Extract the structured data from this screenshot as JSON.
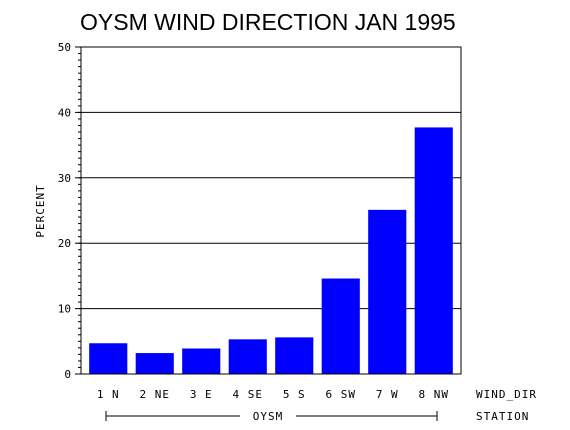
{
  "chart_data": {
    "type": "bar",
    "title": "OYSM WIND DIRECTION JAN 1995",
    "ylabel": "PERCENT",
    "xlabel": "WIND_DIR",
    "group_label": "OYSM",
    "group_axis_label": "STATION",
    "categories": [
      "1 N",
      "2 NE",
      "3 E",
      "4 SE",
      "5 S",
      "6 SW",
      "7 W",
      "8 NW"
    ],
    "values": [
      4.7,
      3.2,
      3.9,
      5.3,
      5.6,
      14.6,
      25.1,
      37.7
    ],
    "ylim": [
      0,
      50
    ],
    "yticks": [
      "0",
      "10",
      "20",
      "30",
      "40",
      "50"
    ],
    "grid": true,
    "bar_color": "#0000ff"
  }
}
